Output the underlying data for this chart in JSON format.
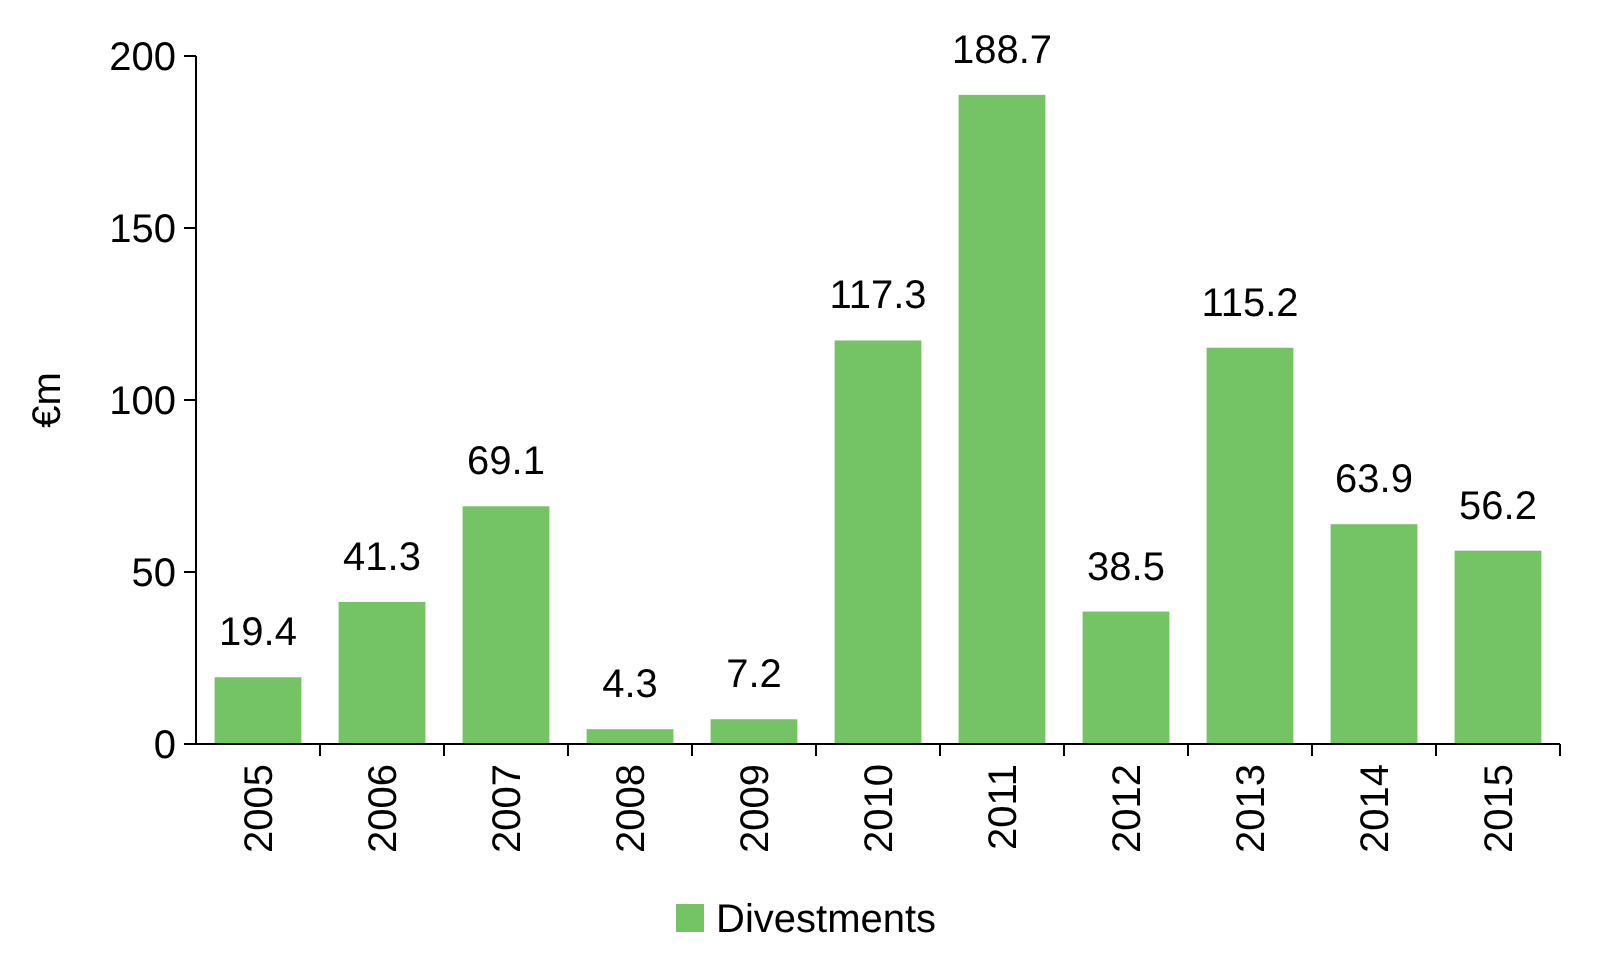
{
  "chart_data": {
    "type": "bar",
    "ylabel": "€m",
    "categories": [
      "2005",
      "2006",
      "2007",
      "2008",
      "2009",
      "2010",
      "2011",
      "2012",
      "2013",
      "2014",
      "2015"
    ],
    "series": [
      {
        "name": "Divestments",
        "color": "#74c365",
        "values": [
          19.4,
          41.3,
          69.1,
          4.3,
          7.2,
          117.3,
          188.7,
          38.5,
          115.2,
          63.9,
          56.2
        ]
      }
    ],
    "ylim": [
      0,
      200
    ],
    "yticks": [
      0,
      50,
      100,
      150,
      200
    ],
    "data_labels": true,
    "grid": false,
    "legend": "bottom"
  }
}
